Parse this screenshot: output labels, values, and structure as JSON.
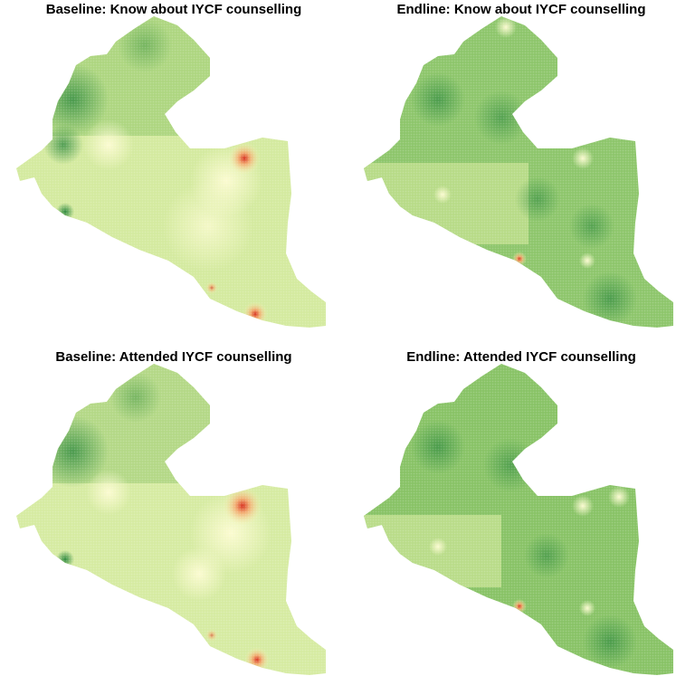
{
  "panels": [
    {
      "title": "Baseline: Know about IYCF counselling",
      "base_color": "#cfe79a",
      "dark_spots": "#5ea64e"
    },
    {
      "title": "Endline: Know about IYCF counselling",
      "base_color": "#8cc66a",
      "dark_spots": "#3f8f45"
    },
    {
      "title": "Baseline: Attended IYCF counselling",
      "base_color": "#d2e89c",
      "dark_spots": "#5ea64e"
    },
    {
      "title": "Endline: Attended IYCF counselling",
      "base_color": "#86c266",
      "dark_spots": "#3f8f45"
    }
  ],
  "colors": {
    "low_red": "#d7301f",
    "mid_yellow": "#f7f7b4",
    "high_green": "#2f8a3f"
  }
}
